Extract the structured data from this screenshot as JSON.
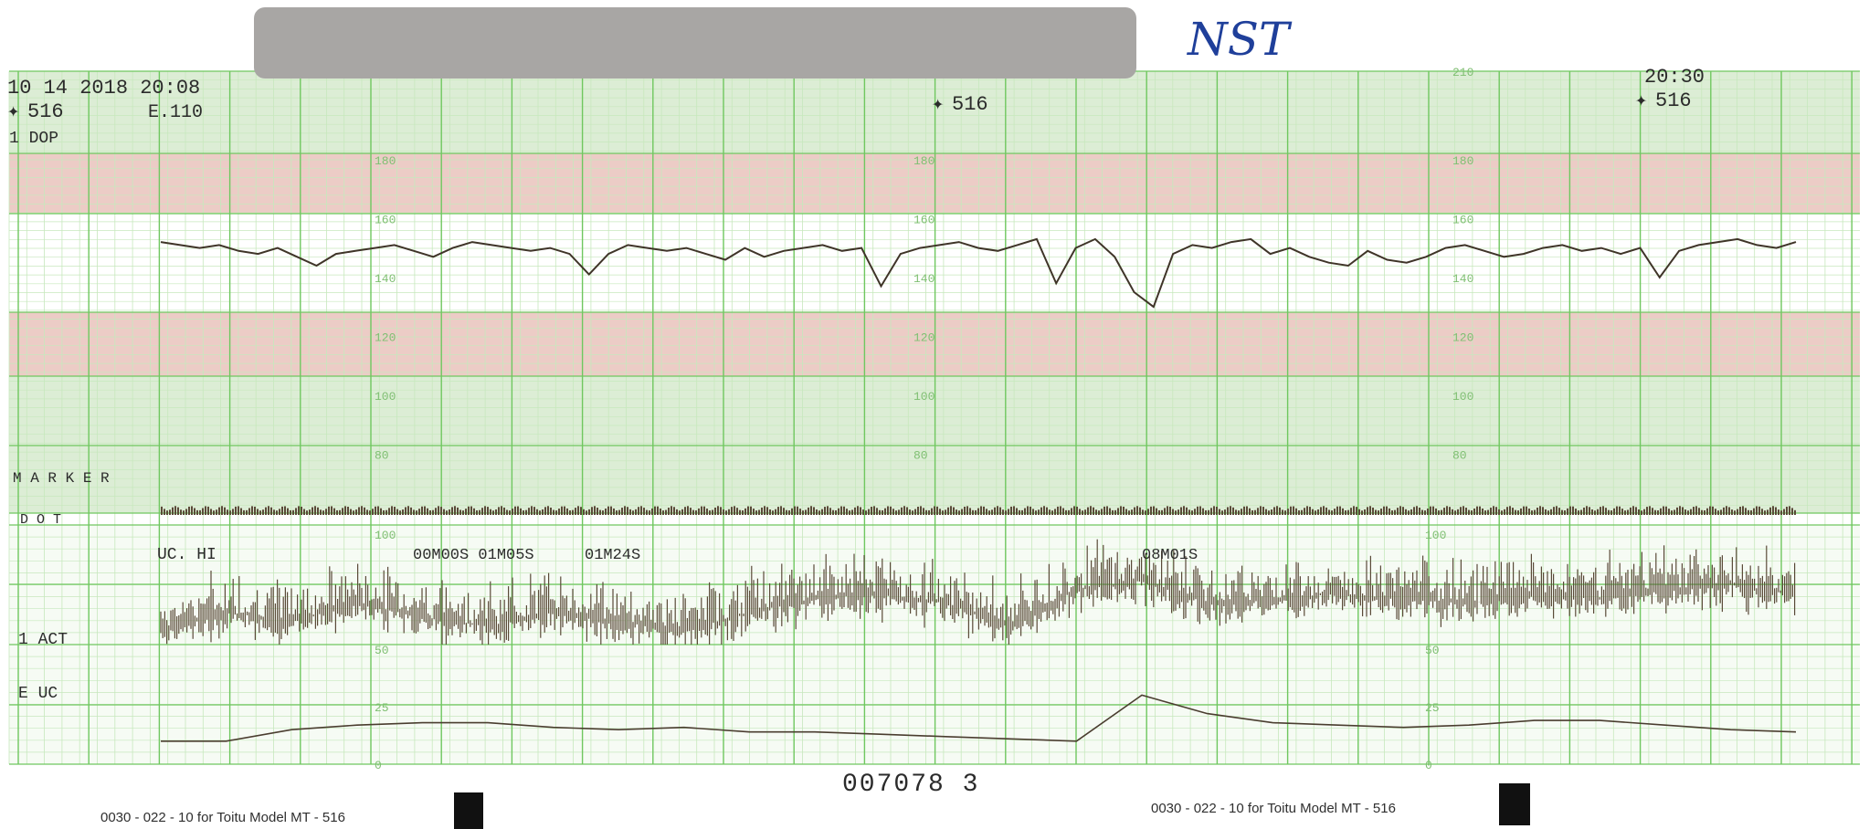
{
  "chart_data": {
    "type": "line",
    "header": {
      "date_time": "10 14 2018 20:08",
      "probe_left": "516",
      "probe_mid": "516",
      "probe_right": "516",
      "time_right": "20:30",
      "channel_code": "E.110",
      "dop_label": "1 DOP",
      "handwritten_label": "NST"
    },
    "fhr": {
      "ylim": [
        60,
        210
      ],
      "tick_labels": [
        "210",
        "180",
        "160",
        "140",
        "120",
        "100",
        "80"
      ],
      "series": [
        {
          "x": [
            0,
            0.3,
            0.6,
            0.9,
            1.2,
            1.5,
            1.8,
            2.1,
            2.4,
            2.7,
            3.0,
            3.3,
            3.6,
            3.9,
            4.2,
            4.5,
            4.8,
            5.1,
            5.4,
            5.7,
            6.0,
            6.3,
            6.6,
            6.9,
            7.2,
            7.5,
            7.8,
            8.1,
            8.4,
            8.7,
            9.0,
            9.3,
            9.6,
            9.9,
            10.2,
            10.5,
            10.8,
            11.1,
            11.4,
            11.7,
            12.0,
            12.3,
            12.6,
            12.9,
            13.2,
            13.5,
            13.8,
            14.1,
            14.4,
            14.7,
            15.0,
            15.3,
            15.6,
            15.9,
            16.2,
            16.5,
            16.8,
            17.1,
            17.4,
            17.7,
            18.0,
            18.3,
            18.6,
            18.9,
            19.2,
            19.5,
            19.8,
            20.1,
            20.4,
            20.7,
            21.0,
            21.3,
            21.6,
            21.9,
            22.2,
            22.5,
            22.8,
            23.1,
            23.4,
            23.7,
            24.0,
            24.3,
            24.6,
            24.9,
            25.2
          ],
          "y": [
            152,
            151,
            150,
            151,
            149,
            148,
            150,
            147,
            144,
            148,
            149,
            150,
            151,
            149,
            147,
            150,
            152,
            151,
            150,
            149,
            150,
            148,
            141,
            148,
            151,
            150,
            149,
            150,
            148,
            146,
            150,
            147,
            149,
            150,
            151,
            149,
            150,
            137,
            148,
            150,
            151,
            152,
            150,
            149,
            151,
            153,
            138,
            150,
            153,
            147,
            135,
            130,
            148,
            151,
            150,
            152,
            153,
            148,
            150,
            147,
            145,
            144,
            149,
            146,
            145,
            147,
            150,
            151,
            149,
            147,
            148,
            150,
            151,
            149,
            150,
            148,
            150,
            140,
            149,
            151,
            152,
            153,
            151,
            150,
            152
          ]
        }
      ]
    },
    "marker": {
      "label": "M A R K E R",
      "dot_label": "D O T"
    },
    "uc": {
      "ylim": [
        0,
        100
      ],
      "tick_labels": [
        "100",
        "50",
        "25",
        "0"
      ],
      "channel_label": "UC. HI",
      "act_label": "1 ACT",
      "euc_label": "E UC",
      "annotations": [
        "00M00S 01M05S",
        "01M24S",
        "08M01S"
      ],
      "act_series": {
        "x": [
          0,
          1,
          2,
          3,
          4,
          5,
          6,
          7,
          8,
          9,
          10,
          11,
          12,
          13,
          14,
          15,
          16,
          17,
          18,
          19,
          20,
          21,
          22,
          23,
          24,
          25
        ],
        "y": [
          58,
          66,
          62,
          70,
          64,
          60,
          66,
          62,
          58,
          66,
          72,
          74,
          70,
          60,
          76,
          80,
          70,
          72,
          74,
          72,
          70,
          74,
          72,
          76,
          78,
          74
        ]
      },
      "uc_series": {
        "x": [
          0,
          1,
          2,
          3,
          4,
          5,
          6,
          7,
          8,
          9,
          10,
          11,
          12,
          13,
          14,
          15,
          16,
          17,
          18,
          19,
          20,
          21,
          22,
          23,
          24,
          25
        ],
        "y": [
          10,
          10,
          15,
          17,
          18,
          18,
          16,
          15,
          16,
          14,
          14,
          13,
          12,
          11,
          10,
          30,
          22,
          18,
          17,
          16,
          17,
          19,
          19,
          17,
          15,
          14
        ]
      }
    },
    "footer": {
      "form_left": "0030 - 022 - 10   for Toitu Model MT - 516",
      "form_right": "0030 - 022 - 10   for Toitu Model MT - 516",
      "serial": "007078 3"
    },
    "colors": {
      "paper": "#ffffff",
      "green_band": "#d9ecd2",
      "red_band": "#ecc9c4",
      "grid_major": "#6fc75f",
      "grid_minor": "#bfe4b4",
      "trace": "#4a3d2f",
      "redaction": "#a8a6a4"
    }
  }
}
